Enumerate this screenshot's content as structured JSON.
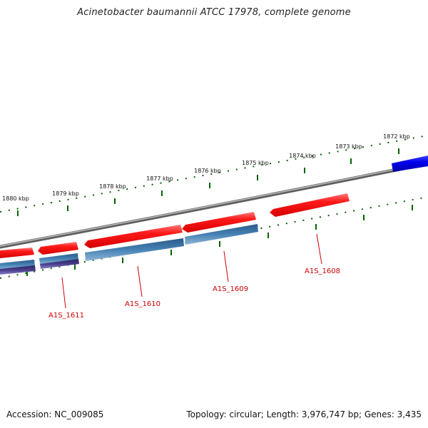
{
  "title": "Acinetobacter baumannii ATCC 17978, complete genome",
  "accession": "Accession: NC_009085",
  "topology": "Topology: circular; Length: 3,976,747 bp; Genes: 3,435",
  "colors": {
    "backbone": "#808080",
    "gene_forward": "#ee0000",
    "gene_reverse_primary": "#0000ee",
    "cds_blue": "#4682b4",
    "cds_purple": "#483d8b",
    "tick": "#006400",
    "label": "#cc0000"
  },
  "ruler": {
    "unit": "kbp",
    "ticks": [
      {
        "kbp": 1880,
        "label": "1880 kbp"
      },
      {
        "kbp": 1879,
        "label": "1879 kbp"
      },
      {
        "kbp": 1878,
        "label": "1878 kbp"
      },
      {
        "kbp": 1877,
        "label": "1877 kbp"
      },
      {
        "kbp": 1876,
        "label": "1876 kbp"
      },
      {
        "kbp": 1875,
        "label": "1875 kbp"
      },
      {
        "kbp": 1874,
        "label": "1874 kbp"
      },
      {
        "kbp": 1873,
        "label": "1873 kbp"
      },
      {
        "kbp": 1872,
        "label": "1872 kbp"
      }
    ]
  },
  "gene_labels": [
    "A1S_1611",
    "A1S_1610",
    "A1S_1609",
    "A1S_1608"
  ]
}
